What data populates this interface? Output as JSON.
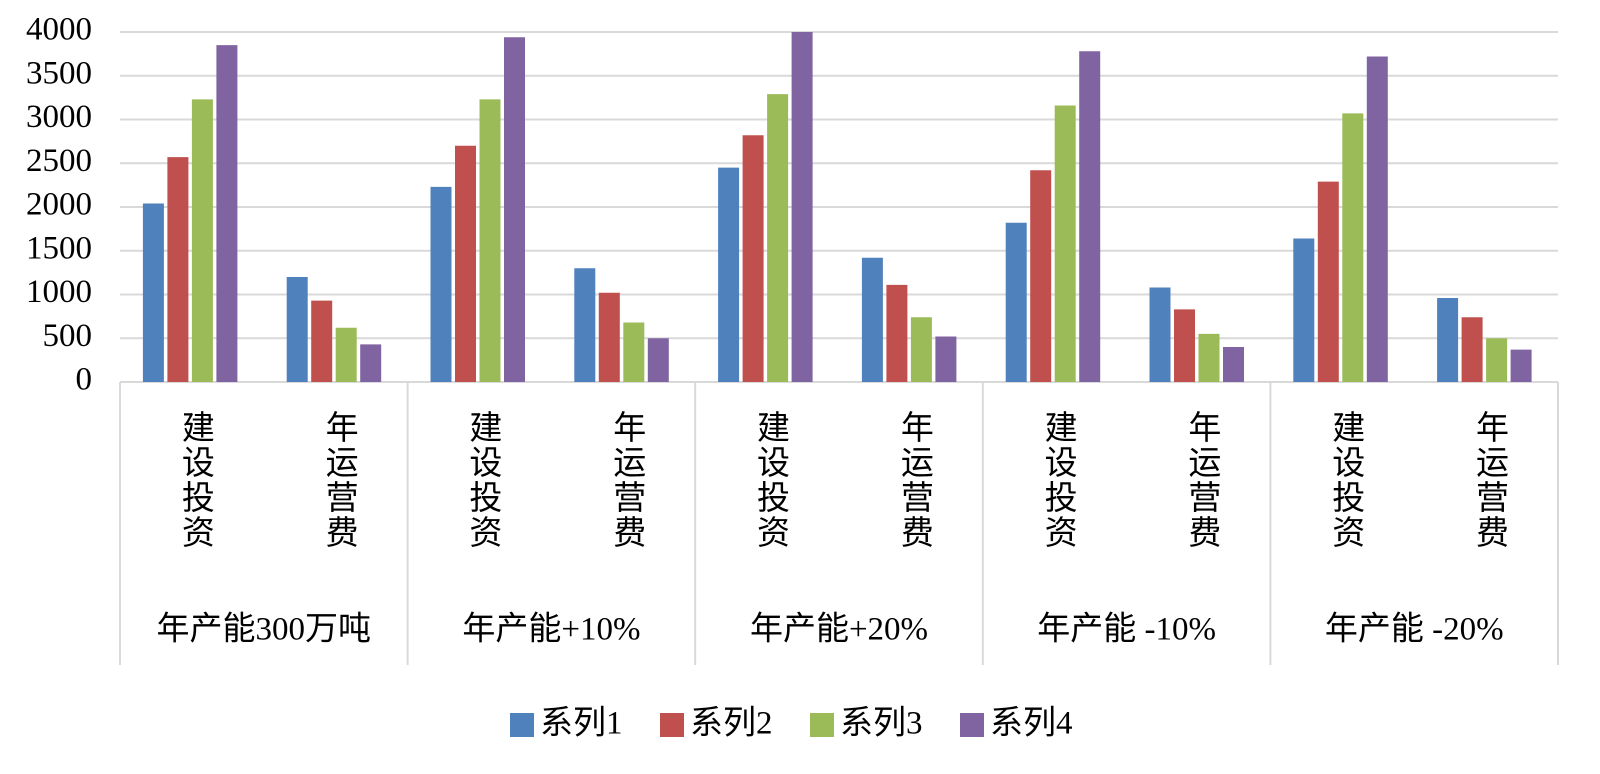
{
  "chart_data": {
    "type": "bar",
    "categories": [
      "建设投资",
      "年运营费",
      "建设投资",
      "年运营费",
      "建设投资",
      "年运营费",
      "建设投资",
      "年运营费",
      "建设投资",
      "年运营费"
    ],
    "groups": [
      "年产能300万吨",
      "年产能+10%",
      "年产能+20%",
      "年产能 -10%",
      "年产能 -20%"
    ],
    "series": [
      {
        "name": "系列1",
        "color": "#4f81bd",
        "values": [
          2040,
          1200,
          2230,
          1300,
          2450,
          1420,
          1820,
          1080,
          1640,
          960
        ]
      },
      {
        "name": "系列2",
        "color": "#c0504d",
        "values": [
          2570,
          930,
          2700,
          1020,
          2820,
          1110,
          2420,
          830,
          2290,
          740
        ]
      },
      {
        "name": "系列3",
        "color": "#9bbb59",
        "values": [
          3230,
          620,
          3230,
          680,
          3290,
          740,
          3160,
          550,
          3070,
          500
        ]
      },
      {
        "name": "系列4",
        "color": "#8064a2",
        "values": [
          3850,
          430,
          3940,
          500,
          4000,
          520,
          3780,
          400,
          3720,
          370
        ]
      }
    ],
    "ylim": [
      0,
      4000
    ],
    "yticks": [
      0,
      500,
      1000,
      1500,
      2000,
      2500,
      3000,
      3500,
      4000
    ],
    "grid": true,
    "legend": "bottom"
  }
}
